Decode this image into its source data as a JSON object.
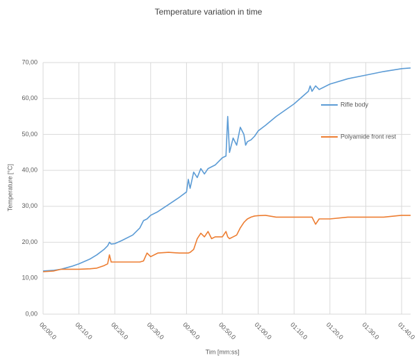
{
  "chart_data": {
    "type": "line",
    "title": "Temperature  variation in time",
    "xlabel": "Tim [mm:ss]",
    "ylabel": "Temperature [°C]",
    "x": [
      0,
      3,
      5,
      8,
      10,
      13,
      15,
      17,
      18,
      18.5,
      19,
      20,
      22,
      25,
      27,
      28,
      29,
      30,
      32,
      35,
      38,
      40,
      40.5,
      41,
      42,
      43,
      44,
      45,
      46,
      47,
      48,
      50,
      51,
      51.5,
      52,
      53,
      54,
      55,
      56,
      56.5,
      57,
      58,
      59,
      60,
      62,
      65,
      70,
      74,
      74.5,
      75,
      76,
      77,
      80,
      85,
      90,
      95,
      100,
      102.5
    ],
    "series": [
      {
        "name": "Rifle body",
        "color": "#5b9bd5",
        "values": [
          12,
          12.2,
          12.5,
          13.3,
          14,
          15.3,
          16.5,
          18,
          19,
          20,
          19.5,
          19.6,
          20.5,
          22,
          24,
          26,
          26.5,
          27.5,
          28.5,
          30.5,
          32.5,
          34,
          37.5,
          35,
          39.5,
          38,
          40.5,
          39,
          40.5,
          41,
          41.5,
          43.5,
          44,
          55,
          45,
          49,
          47,
          52,
          50,
          47,
          48,
          48.5,
          49.5,
          51,
          52.5,
          55,
          58.5,
          62,
          63.5,
          62,
          63.5,
          62.5,
          64,
          65.5,
          66.5,
          67.5,
          68.3,
          68.5
        ]
      },
      {
        "name": "Polyamide front rest",
        "color": "#ed7d31",
        "values": [
          11.8,
          12,
          12.5,
          12.5,
          12.5,
          12.6,
          12.8,
          13.5,
          14,
          16.5,
          14.5,
          14.5,
          14.5,
          14.5,
          14.5,
          14.8,
          17,
          16,
          17,
          17.2,
          17,
          17,
          17,
          17.2,
          18,
          21,
          22.5,
          21.5,
          23,
          21,
          21.5,
          21.5,
          23,
          21.5,
          21,
          21.5,
          22,
          24,
          25.5,
          26,
          26.5,
          27,
          27.3,
          27.4,
          27.5,
          27,
          27,
          27,
          27,
          27,
          25,
          26.5,
          26.5,
          27,
          27,
          27,
          27.5,
          27.5
        ]
      }
    ],
    "xlim": [
      0,
      102.5
    ],
    "ylim": [
      0,
      70
    ],
    "xticks": [
      {
        "value": 0,
        "label": "00:00,0"
      },
      {
        "value": 10,
        "label": "00:10,0"
      },
      {
        "value": 20,
        "label": "00:20,0"
      },
      {
        "value": 30,
        "label": "00:30,0"
      },
      {
        "value": 40,
        "label": "00:40,0"
      },
      {
        "value": 50,
        "label": "00:50,0"
      },
      {
        "value": 60,
        "label": "01:00,0"
      },
      {
        "value": 70,
        "label": "01:10,0"
      },
      {
        "value": 80,
        "label": "01:20,0"
      },
      {
        "value": 90,
        "label": "01:30,0"
      },
      {
        "value": 100,
        "label": "01:40,0"
      }
    ],
    "yticks": [
      {
        "value": 0,
        "label": "0,00"
      },
      {
        "value": 10,
        "label": "10,00"
      },
      {
        "value": 20,
        "label": "20,00"
      },
      {
        "value": 30,
        "label": "30,00"
      },
      {
        "value": 40,
        "label": "40,00"
      },
      {
        "value": 50,
        "label": "50,00"
      },
      {
        "value": 60,
        "label": "60,00"
      },
      {
        "value": 70,
        "label": "70,00"
      }
    ],
    "grid": true,
    "legend": "right"
  }
}
